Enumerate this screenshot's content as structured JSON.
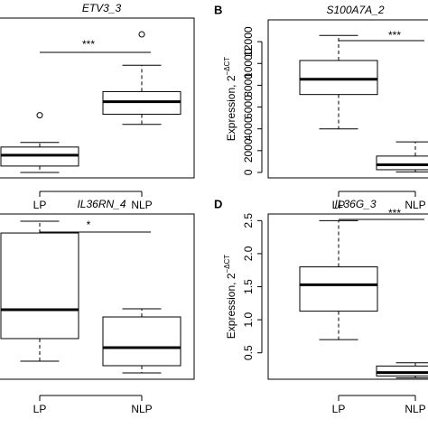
{
  "chart_data": [
    {
      "type": "box",
      "title": "ETV3_3",
      "categories": [
        "LP",
        "NLP"
      ],
      "ylim": [
        0,
        100
      ],
      "annotation": "***",
      "boxes": [
        {
          "whislo": 3.4,
          "q1": 7.4,
          "med": 14.2,
          "q3": 19.3,
          "whishi": 22.2,
          "fliers": [
            39.2
          ]
        },
        {
          "whislo": 33.5,
          "q1": 39.8,
          "med": 47.7,
          "q3": 54,
          "whishi": 70.5,
          "fliers": [
            89.8
          ]
        }
      ]
    },
    {
      "type": "box",
      "panel_label": "B",
      "title": "S100A7A_2",
      "categories": [
        "LP",
        "NLP"
      ],
      "ylabel": "Expression, 2",
      "ylabel_superscript": "−ΔCT",
      "ylim": [
        -500,
        14000
      ],
      "yticks": [
        0,
        2000,
        4000,
        6000,
        8000,
        10000,
        12000
      ],
      "annotation": "***",
      "boxes": [
        {
          "whislo": 4000,
          "q1": 7150,
          "med": 8550,
          "q3": 10270,
          "whishi": 12570,
          "fliers": []
        },
        {
          "whislo": 50,
          "q1": 250,
          "med": 700,
          "q3": 1500,
          "whishi": 2800,
          "fliers": []
        }
      ]
    },
    {
      "type": "box",
      "title": "IL36RN_4",
      "categories": [
        "LP",
        "NLP"
      ],
      "ylim": [
        0,
        100
      ],
      "annotation": "*",
      "boxes": [
        {
          "whislo": 10.9,
          "q1": 24.6,
          "med": 42.1,
          "q3": 88.5,
          "whishi": 95.6,
          "fliers": []
        },
        {
          "whislo": 3.8,
          "q1": 8.2,
          "med": 19.1,
          "q3": 37.7,
          "whishi": 42.6,
          "fliers": []
        }
      ]
    },
    {
      "type": "box",
      "panel_label": "D",
      "title": "IL36G_3",
      "categories": [
        "LP",
        "NLP"
      ],
      "ylabel": "Expression, 2",
      "ylabel_superscript": "−ΔCT",
      "ylim": [
        0.1,
        2.6
      ],
      "yticks": [
        {
          "value": 0.5,
          "label": "0.5"
        },
        {
          "value": 1,
          "label": "1.0"
        },
        {
          "value": 1.5,
          "label": "1.5"
        },
        {
          "value": 2,
          "label": "2.0"
        },
        {
          "value": 2.5,
          "label": "2.5"
        }
      ],
      "annotation": "***",
      "boxes": [
        {
          "whislo": 0.7,
          "q1": 1.13,
          "med": 1.53,
          "q3": 1.8,
          "whishi": 2.5,
          "fliers": []
        },
        {
          "whislo": 0.12,
          "q1": 0.15,
          "med": 0.2,
          "q3": 0.3,
          "whishi": 0.35,
          "fliers": []
        }
      ]
    }
  ]
}
